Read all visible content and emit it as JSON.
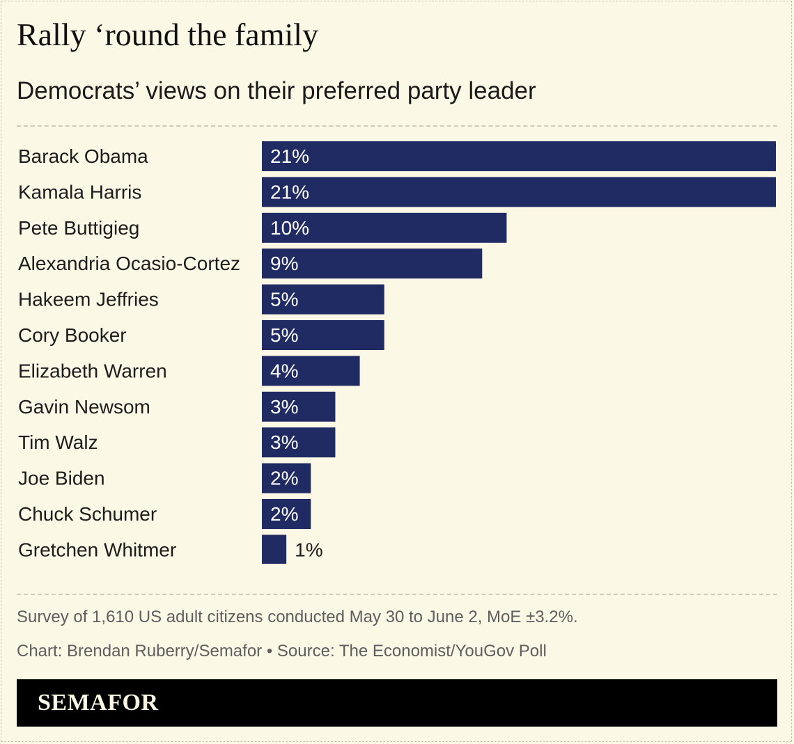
{
  "header": {
    "title": "Rally ‘round the family",
    "subtitle": "Democrats’ views on their preferred party leader"
  },
  "colors": {
    "background": "#fbf8e6",
    "bar": "#212b63",
    "bar_label_inside": "#ffffff",
    "bar_label_outside": "#1c1c1c",
    "footer": "#000000"
  },
  "chart_data": {
    "type": "bar",
    "orientation": "horizontal",
    "categories": [
      "Barack Obama",
      "Kamala Harris",
      "Pete Buttigieg",
      "Alexandria Ocasio-Cortez",
      "Hakeem Jeffries",
      "Cory Booker",
      "Elizabeth Warren",
      "Gavin Newsom",
      "Tim Walz",
      "Joe Biden",
      "Chuck Schumer",
      "Gretchen Whitmer"
    ],
    "values": [
      21,
      21,
      10,
      9,
      5,
      5,
      4,
      3,
      3,
      2,
      2,
      1
    ],
    "value_labels": [
      "21%",
      "21%",
      "10%",
      "9%",
      "5%",
      "5%",
      "4%",
      "3%",
      "3%",
      "2%",
      "2%",
      "1%"
    ],
    "xlim": [
      0,
      21
    ],
    "grid": false,
    "legend": "none"
  },
  "notes": {
    "survey": "Survey of 1,610 US adult citizens conducted May 30 to June 2, MoE ±3.2%.",
    "credit": "Chart: Brendan Ruberry/Semafor • Source: The Economist/YouGov Poll"
  },
  "footer": {
    "logo": "SEMAFOR"
  }
}
